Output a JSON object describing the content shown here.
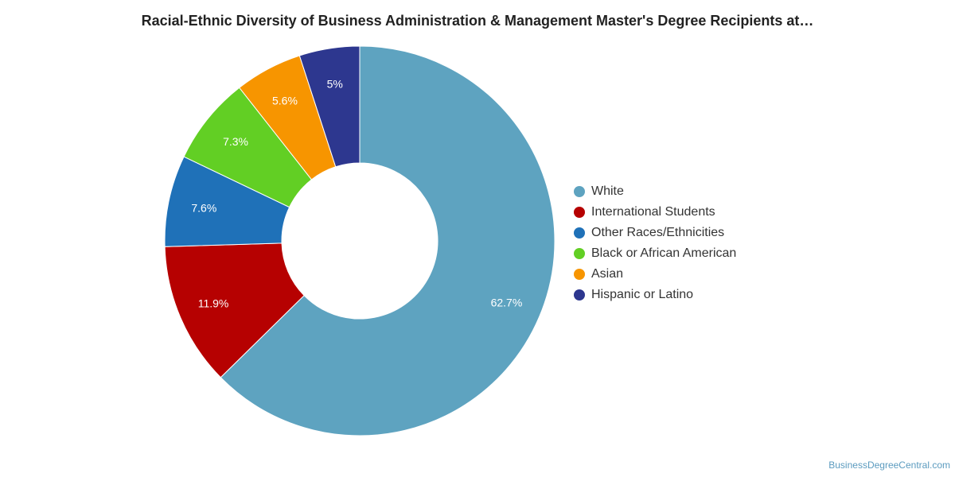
{
  "chart_data": {
    "type": "pie",
    "title": "Racial-Ethnic Diversity of Business Administration & Management Master's Degree Recipients at…",
    "legend_placement": "right",
    "slices": [
      {
        "label": "White",
        "value": 62.7,
        "display": "62.7%",
        "color": "#5ea3c0"
      },
      {
        "label": "International Students",
        "value": 11.9,
        "display": "11.9%",
        "color": "#b60101"
      },
      {
        "label": "Other Races/Ethnicities",
        "value": 7.6,
        "display": "7.6%",
        "color": "#1f71b8"
      },
      {
        "label": "Black or African American",
        "value": 7.3,
        "display": "7.3%",
        "color": "#62cf24"
      },
      {
        "label": "Asian",
        "value": 5.6,
        "display": "5.6%",
        "color": "#f79500"
      },
      {
        "label": "Hispanic or Latino",
        "value": 5.0,
        "display": "5%",
        "color": "#2d378f"
      }
    ]
  },
  "footer": {
    "credit": "BusinessDegreeCentral.com"
  }
}
